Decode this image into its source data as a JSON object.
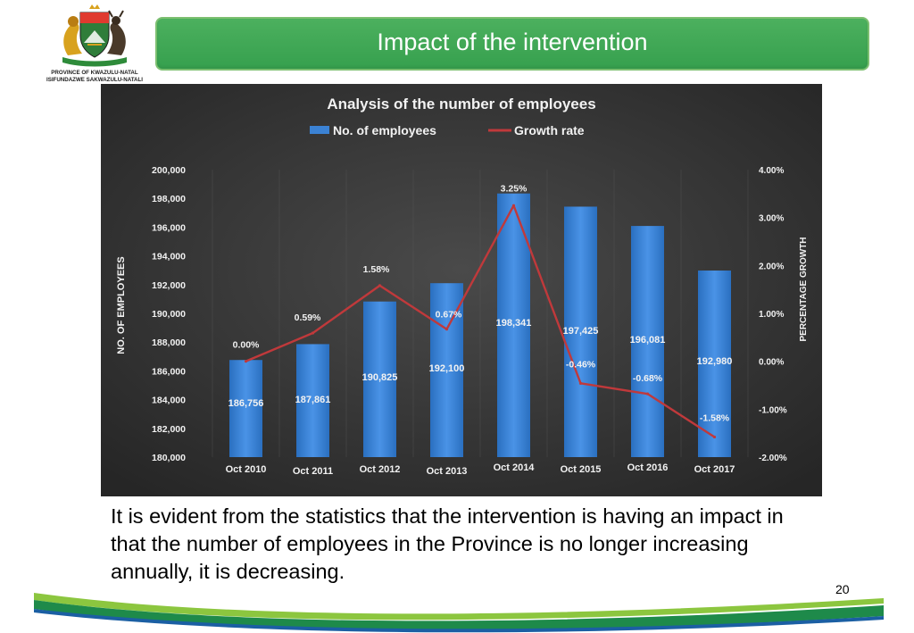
{
  "header": {
    "title": "Impact of the intervention",
    "logo_line1": "PROVINCE OF KWAZULU-NATAL",
    "logo_line2": "ISIFUNDAZWE SAKWAZULU-NATALI",
    "logo_icon": "coat-of-arms-icon"
  },
  "colors": {
    "title_bar": "#3fa857",
    "bar": "#3b82d4",
    "growth_line": "#c0393b",
    "chart_bg": "#3a3a3a"
  },
  "chart_data": {
    "type": "bar",
    "title": "Analysis of the number of employees",
    "categories": [
      "Oct 2010",
      "Oct 2011",
      "Oct 2012",
      "Oct 2013",
      "Oct 2014",
      "Oct 2015",
      "Oct 2016",
      "Oct 2017"
    ],
    "series": [
      {
        "name": "No. of employees",
        "type": "bar",
        "axis": "left",
        "values": [
          186756,
          187861,
          190825,
          192100,
          198341,
          197425,
          196081,
          192980
        ],
        "labels": [
          "186,756",
          "187,861",
          "190,825",
          "192,100",
          "198,341",
          "197,425",
          "196,081",
          "192,980"
        ]
      },
      {
        "name": "Growth rate",
        "type": "line",
        "axis": "right",
        "values": [
          0.0,
          0.59,
          1.58,
          0.67,
          3.25,
          -0.46,
          -0.68,
          -1.58
        ],
        "labels": [
          "0.00%",
          "0.59%",
          "1.58%",
          "0.67%",
          "3.25%",
          "-0.46%",
          "-0.68%",
          "-1.58%"
        ]
      }
    ],
    "ylabel": "NO. OF EMPLOYEES",
    "y2label": "PERCENTAGE GROWTH",
    "ylim": [
      180000,
      200000
    ],
    "y2lim": [
      -2,
      4
    ],
    "yticks": [
      "180,000",
      "182,000",
      "184,000",
      "186,000",
      "188,000",
      "190,000",
      "192,000",
      "194,000",
      "196,000",
      "198,000",
      "200,000"
    ],
    "y2ticks": [
      "-2.00%",
      "-1.00%",
      "0.00%",
      "1.00%",
      "2.00%",
      "3.00%",
      "4.00%"
    ],
    "legend_position": "top-center",
    "grid": true
  },
  "body": {
    "text": "It is evident from the statistics that the intervention is having an impact in that the number of employees in the Province is no longer increasing annually, it is decreasing."
  },
  "footer": {
    "page_number": "20"
  }
}
